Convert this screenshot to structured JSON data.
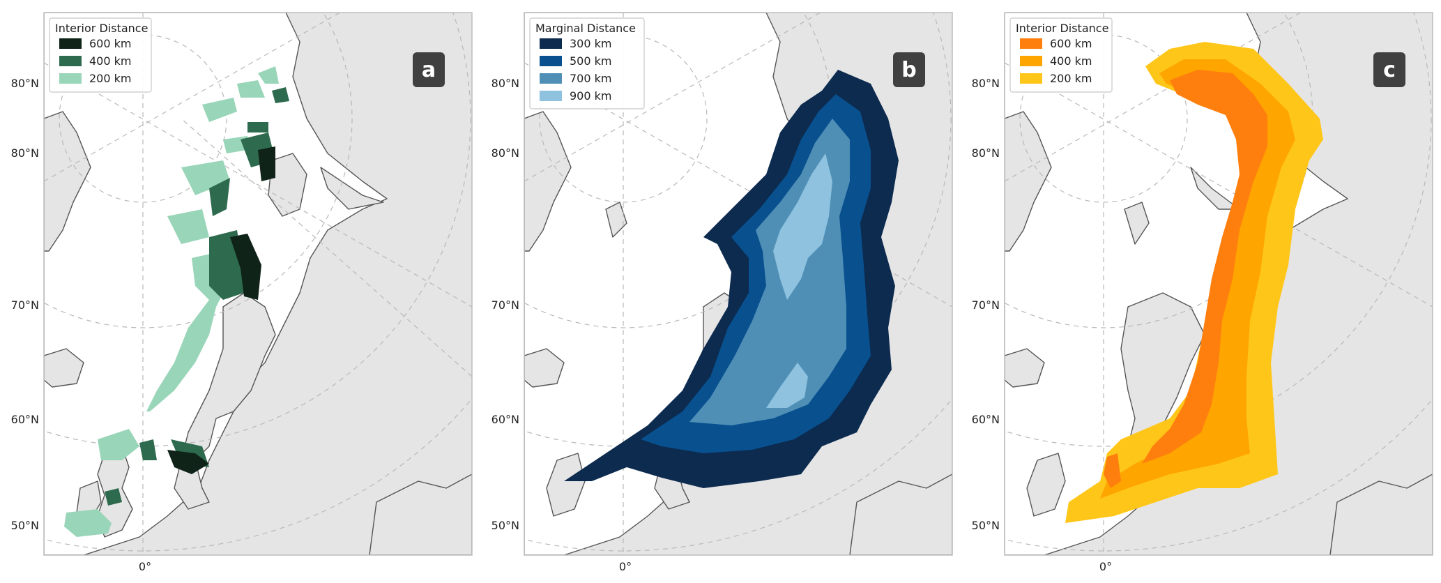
{
  "panels": [
    {
      "id": "a",
      "badge": "a",
      "legend": {
        "title": "Interior Distance",
        "entries": [
          {
            "label": "600 km",
            "color": "#0f2318"
          },
          {
            "label": "400 km",
            "color": "#2e6b4e"
          },
          {
            "label": "200 km",
            "color": "#99d5b8"
          }
        ]
      },
      "lat_labels": [
        "80°N",
        "80°N",
        "70°N",
        "60°N",
        "50°N"
      ],
      "lon_label": "0°"
    },
    {
      "id": "b",
      "badge": "b",
      "legend": {
        "title": "Marginal Distance",
        "entries": [
          {
            "label": "300 km",
            "color": "#0d2a4f"
          },
          {
            "label": "500 km",
            "color": "#08508e"
          },
          {
            "label": "700 km",
            "color": "#4f8fb6"
          },
          {
            "label": "900 km",
            "color": "#8ec2df"
          }
        ]
      },
      "lat_labels": [
        "80°N",
        "80°N",
        "70°N",
        "60°N",
        "50°N"
      ],
      "lon_label": "0°"
    },
    {
      "id": "c",
      "badge": "c",
      "legend": {
        "title": "Interior Distance",
        "entries": [
          {
            "label": "600 km",
            "color": "#ff7f0e"
          },
          {
            "label": "400 km",
            "color": "#ffa500"
          },
          {
            "label": "200 km",
            "color": "#ffc61a"
          }
        ]
      },
      "lat_labels": [
        "80°N",
        "80°N",
        "70°N",
        "60°N",
        "50°N"
      ],
      "lon_label": "0°"
    }
  ]
}
